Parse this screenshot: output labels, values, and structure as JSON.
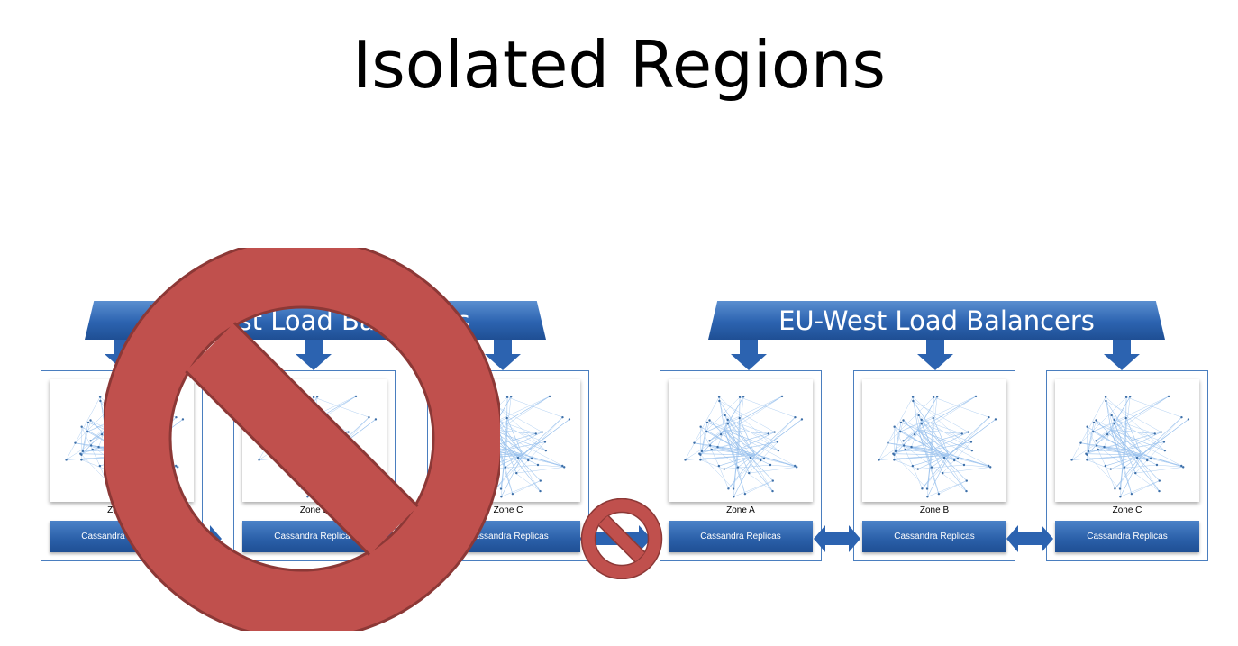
{
  "title": "Isolated Regions",
  "regions": [
    {
      "banner": "US-East Load Balancers",
      "zones": [
        {
          "label": "Zone A",
          "replicas": "Cassandra Replicas"
        },
        {
          "label": "Zone B",
          "replicas": "Cassandra Replicas"
        },
        {
          "label": "Zone C",
          "replicas": "Cassandra Replicas"
        }
      ]
    },
    {
      "banner": "EU-West Load Balancers",
      "zones": [
        {
          "label": "Zone A",
          "replicas": "Cassandra Replicas"
        },
        {
          "label": "Zone B",
          "replicas": "Cassandra Replicas"
        },
        {
          "label": "Zone C",
          "replicas": "Cassandra Replicas"
        }
      ]
    }
  ],
  "colors": {
    "banner": "#2c63b0",
    "no_sign_fill": "#c0504d",
    "no_sign_stroke": "#8c3836",
    "graph_edge": "#9cc3ee",
    "graph_node": "#3d6fa8"
  },
  "icons": [
    "prohibition-icon",
    "arrow-down-icon",
    "double-arrow-icon"
  ]
}
